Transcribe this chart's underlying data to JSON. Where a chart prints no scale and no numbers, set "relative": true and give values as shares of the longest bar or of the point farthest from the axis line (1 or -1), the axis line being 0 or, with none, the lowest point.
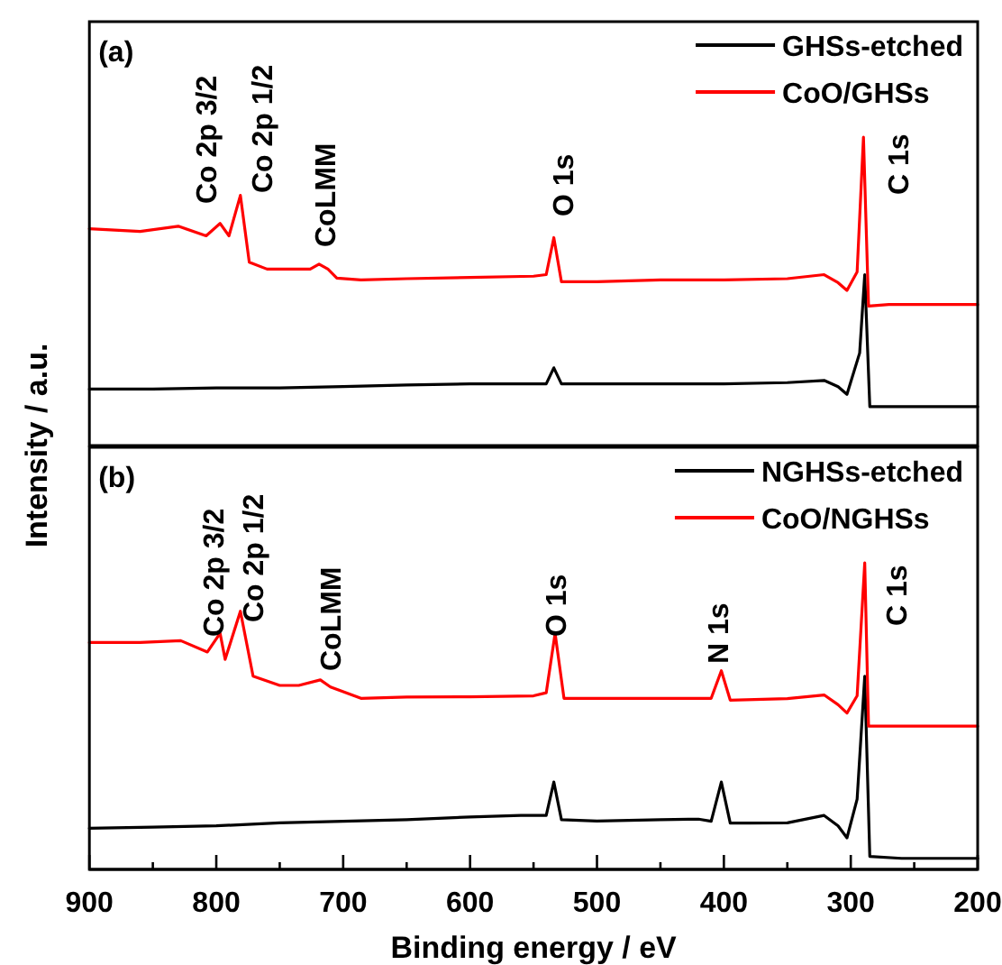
{
  "chart_data": [
    {
      "type": "line",
      "relative": true,
      "xlim": [
        900,
        200
      ],
      "tick_labels": false,
      "legend": "top right",
      "ylabel": "Intensity / a.u.",
      "annotations": [
        "(a)",
        "Co 2p 3/2",
        "Co 2p 1/2",
        "CoLMM",
        "O 1s",
        "C 1s"
      ],
      "series": [
        {
          "name": "GHSs-etched",
          "color": "#000000",
          "x": [
            900,
            850,
            800,
            750,
            700,
            650,
            600,
            550,
            540,
            534,
            528,
            500,
            450,
            400,
            350,
            321,
            310,
            303,
            293,
            289,
            285,
            280,
            250,
            200
          ],
          "values": [
            0.183,
            0.183,
            0.187,
            0.187,
            0.191,
            0.196,
            0.2,
            0.2,
            0.2,
            0.252,
            0.2,
            0.2,
            0.2,
            0.2,
            0.204,
            0.211,
            0.191,
            0.166,
            0.3,
            0.554,
            0.126,
            0.126,
            0.126,
            0.126
          ]
        },
        {
          "name": "CoO/GHSs",
          "color": "#ff0000",
          "x": [
            900,
            860,
            830,
            808,
            797,
            790,
            781,
            774,
            760,
            735,
            726,
            719,
            712,
            705,
            686,
            650,
            600,
            550,
            540,
            534,
            528,
            500,
            450,
            400,
            350,
            321,
            310,
            303,
            295,
            290,
            286,
            270,
            230,
            200
          ],
          "values": [
            0.703,
            0.694,
            0.711,
            0.68,
            0.72,
            0.68,
            0.811,
            0.594,
            0.572,
            0.572,
            0.572,
            0.588,
            0.572,
            0.543,
            0.537,
            0.541,
            0.545,
            0.549,
            0.554,
            0.674,
            0.531,
            0.531,
            0.537,
            0.537,
            0.541,
            0.554,
            0.528,
            0.503,
            0.563,
            1,
            0.452,
            0.457,
            0.457,
            0.457
          ]
        }
      ]
    },
    {
      "type": "line",
      "relative": true,
      "xlim": [
        900,
        200
      ],
      "tick_labels": "x",
      "legend": "top right",
      "xlabel": "Binding energy / eV",
      "xticks": [
        900,
        {
          "value": 850,
          "label": null
        },
        800,
        {
          "value": 750,
          "label": null
        },
        700,
        {
          "value": 650,
          "label": null
        },
        600,
        {
          "value": 550,
          "label": null
        },
        500,
        {
          "value": 450,
          "label": null
        },
        400,
        {
          "value": 350,
          "label": null
        },
        300,
        {
          "value": 250,
          "label": null
        },
        200
      ],
      "annotations": [
        "(b)",
        "Co 2p 3/2",
        "Co 2p 1/2",
        "CoLMM",
        "O 1s",
        "N 1s",
        "C 1s"
      ],
      "series": [
        {
          "name": "NGHSs-etched",
          "color": "#000000",
          "x": [
            900,
            850,
            800,
            750,
            700,
            650,
            600,
            560,
            540,
            534,
            528,
            500,
            450,
            420,
            410,
            402,
            395,
            380,
            350,
            321,
            310,
            303,
            295,
            289,
            285,
            260,
            230,
            200
          ],
          "values": [
            0.134,
            0.138,
            0.142,
            0.152,
            0.157,
            0.162,
            0.171,
            0.176,
            0.176,
            0.285,
            0.162,
            0.158,
            0.162,
            0.164,
            0.157,
            0.285,
            0.151,
            0.151,
            0.152,
            0.176,
            0.142,
            0.103,
            0.229,
            0.63,
            0.042,
            0.036,
            0.036,
            0.036
          ]
        },
        {
          "name": "CoO/NGHSs",
          "color": "#ff0000",
          "x": [
            900,
            860,
            828,
            807,
            797,
            793,
            781,
            771,
            750,
            735,
            718,
            710,
            686,
            650,
            600,
            550,
            540,
            533,
            526,
            500,
            450,
            410,
            402,
            395,
            350,
            321,
            310,
            303,
            295,
            289,
            286,
            260,
            230,
            200
          ],
          "values": [
            0.74,
            0.74,
            0.746,
            0.709,
            0.77,
            0.685,
            0.842,
            0.63,
            0.6,
            0.6,
            0.618,
            0.595,
            0.558,
            0.562,
            0.563,
            0.566,
            0.576,
            0.77,
            0.558,
            0.558,
            0.558,
            0.558,
            0.648,
            0.552,
            0.557,
            0.569,
            0.537,
            0.51,
            0.566,
            1,
            0.467,
            0.467,
            0.467,
            0.467
          ]
        }
      ]
    }
  ]
}
